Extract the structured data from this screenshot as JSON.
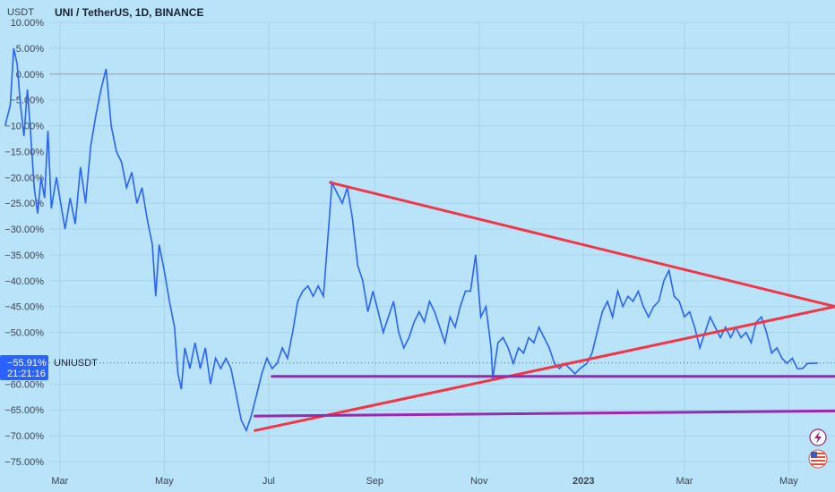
{
  "header": {
    "unit": "USDT",
    "title": "UNI / TetherUS, 1D, BINANCE"
  },
  "price_label": {
    "value": "−55.91%",
    "countdown": "21:21:16",
    "symbol": "UNIUSDT"
  },
  "colors": {
    "background": "#b9e3f9",
    "line": "#2962ff",
    "trend": "#f23645",
    "level": "#9c27b0",
    "label_bg": "#2962ff"
  },
  "icons": [
    "flash-icon",
    "us-flag-icon"
  ],
  "chart_data": {
    "type": "line",
    "title": "UNI / TetherUS, 1D, BINANCE",
    "ylabel": "USDT",
    "ylim": [
      -78,
      12
    ],
    "y_ticks": [
      {
        "v": 10,
        "label": "10.00%"
      },
      {
        "v": 5,
        "label": "5.00%"
      },
      {
        "v": 0,
        "label": "0.00%"
      },
      {
        "v": -5,
        "label": "−5.00%"
      },
      {
        "v": -10,
        "label": "−10.00%"
      },
      {
        "v": -15,
        "label": "−15.00%"
      },
      {
        "v": -20,
        "label": "−20.00%"
      },
      {
        "v": -25,
        "label": "−25.00%"
      },
      {
        "v": -30,
        "label": "−30.00%"
      },
      {
        "v": -35,
        "label": "−35.00%"
      },
      {
        "v": -40,
        "label": "−40.00%"
      },
      {
        "v": -45,
        "label": "−45.00%"
      },
      {
        "v": -50,
        "label": "−50.00%"
      },
      {
        "v": -60,
        "label": "−60.00%"
      },
      {
        "v": -65,
        "label": "−65.00%"
      },
      {
        "v": -70,
        "label": "−70.00%"
      },
      {
        "v": -75,
        "label": "−75.00%"
      }
    ],
    "x_ticks": [
      {
        "date": "2022-03-01",
        "label": "Mar"
      },
      {
        "date": "2022-05-01",
        "label": "May"
      },
      {
        "date": "2022-07-01",
        "label": "Jul"
      },
      {
        "date": "2022-09-01",
        "label": "Sep"
      },
      {
        "date": "2022-11-01",
        "label": "Nov"
      },
      {
        "date": "2023-01-01",
        "label": "2023"
      },
      {
        "date": "2023-03-01",
        "label": "Mar"
      },
      {
        "date": "2023-05-01",
        "label": "May"
      }
    ],
    "xlim": [
      "2022-01-25",
      "2023-05-28"
    ],
    "series": [
      {
        "values": [
          [
            "2022-01-28",
            -10
          ],
          [
            "2022-01-31",
            -6
          ],
          [
            "2022-02-02",
            5
          ],
          [
            "2022-02-04",
            2
          ],
          [
            "2022-02-06",
            -6
          ],
          [
            "2022-02-08",
            -12
          ],
          [
            "2022-02-10",
            -3
          ],
          [
            "2022-02-12",
            -12
          ],
          [
            "2022-02-14",
            -22
          ],
          [
            "2022-02-16",
            -27
          ],
          [
            "2022-02-18",
            -20
          ],
          [
            "2022-02-20",
            -24
          ],
          [
            "2022-02-22",
            -11
          ],
          [
            "2022-02-24",
            -26
          ],
          [
            "2022-02-27",
            -20
          ],
          [
            "2022-03-01",
            -24
          ],
          [
            "2022-03-04",
            -30
          ],
          [
            "2022-03-07",
            -24
          ],
          [
            "2022-03-10",
            -29
          ],
          [
            "2022-03-13",
            -18
          ],
          [
            "2022-03-16",
            -25
          ],
          [
            "2022-03-19",
            -14
          ],
          [
            "2022-03-22",
            -8
          ],
          [
            "2022-03-25",
            -3
          ],
          [
            "2022-03-28",
            1
          ],
          [
            "2022-03-31",
            -10
          ],
          [
            "2022-04-03",
            -15
          ],
          [
            "2022-04-06",
            -17
          ],
          [
            "2022-04-09",
            -22
          ],
          [
            "2022-04-12",
            -19
          ],
          [
            "2022-04-15",
            -25
          ],
          [
            "2022-04-18",
            -22
          ],
          [
            "2022-04-21",
            -28
          ],
          [
            "2022-04-24",
            -33
          ],
          [
            "2022-04-26",
            -43
          ],
          [
            "2022-04-28",
            -33
          ],
          [
            "2022-05-01",
            -38
          ],
          [
            "2022-05-04",
            -44
          ],
          [
            "2022-05-07",
            -49
          ],
          [
            "2022-05-09",
            -58
          ],
          [
            "2022-05-11",
            -61
          ],
          [
            "2022-05-13",
            -53
          ],
          [
            "2022-05-16",
            -57
          ],
          [
            "2022-05-19",
            -52
          ],
          [
            "2022-05-22",
            -57
          ],
          [
            "2022-05-25",
            -53
          ],
          [
            "2022-05-28",
            -60
          ],
          [
            "2022-05-31",
            -55
          ],
          [
            "2022-06-03",
            -57
          ],
          [
            "2022-06-06",
            -55
          ],
          [
            "2022-06-09",
            -57
          ],
          [
            "2022-06-12",
            -62
          ],
          [
            "2022-06-15",
            -67
          ],
          [
            "2022-06-18",
            -69
          ],
          [
            "2022-06-21",
            -66
          ],
          [
            "2022-06-24",
            -62
          ],
          [
            "2022-06-27",
            -58
          ],
          [
            "2022-06-30",
            -55
          ],
          [
            "2022-07-03",
            -57
          ],
          [
            "2022-07-06",
            -56
          ],
          [
            "2022-07-09",
            -53
          ],
          [
            "2022-07-12",
            -55
          ],
          [
            "2022-07-15",
            -50
          ],
          [
            "2022-07-18",
            -44
          ],
          [
            "2022-07-21",
            -42
          ],
          [
            "2022-07-24",
            -41
          ],
          [
            "2022-07-27",
            -43
          ],
          [
            "2022-07-30",
            -41
          ],
          [
            "2022-08-02",
            -43
          ],
          [
            "2022-08-05",
            -30
          ],
          [
            "2022-08-07",
            -21
          ],
          [
            "2022-08-10",
            -23
          ],
          [
            "2022-08-13",
            -25
          ],
          [
            "2022-08-16",
            -22
          ],
          [
            "2022-08-19",
            -28
          ],
          [
            "2022-08-22",
            -37
          ],
          [
            "2022-08-25",
            -40
          ],
          [
            "2022-08-28",
            -46
          ],
          [
            "2022-08-31",
            -42
          ],
          [
            "2022-09-03",
            -46
          ],
          [
            "2022-09-06",
            -50
          ],
          [
            "2022-09-09",
            -47
          ],
          [
            "2022-09-12",
            -44
          ],
          [
            "2022-09-15",
            -50
          ],
          [
            "2022-09-18",
            -53
          ],
          [
            "2022-09-21",
            -51
          ],
          [
            "2022-09-24",
            -48
          ],
          [
            "2022-09-27",
            -46
          ],
          [
            "2022-09-30",
            -48
          ],
          [
            "2022-10-03",
            -44
          ],
          [
            "2022-10-06",
            -46
          ],
          [
            "2022-10-09",
            -49
          ],
          [
            "2022-10-12",
            -52
          ],
          [
            "2022-10-15",
            -47
          ],
          [
            "2022-10-18",
            -49
          ],
          [
            "2022-10-21",
            -45
          ],
          [
            "2022-10-24",
            -42
          ],
          [
            "2022-10-27",
            -42
          ],
          [
            "2022-10-30",
            -35
          ],
          [
            "2022-11-02",
            -47
          ],
          [
            "2022-11-05",
            -45
          ],
          [
            "2022-11-08",
            -53
          ],
          [
            "2022-11-09",
            -59
          ],
          [
            "2022-11-12",
            -52
          ],
          [
            "2022-11-15",
            -51
          ],
          [
            "2022-11-18",
            -53
          ],
          [
            "2022-11-21",
            -56
          ],
          [
            "2022-11-24",
            -53
          ],
          [
            "2022-11-27",
            -54
          ],
          [
            "2022-11-30",
            -51
          ],
          [
            "2022-12-03",
            -52
          ],
          [
            "2022-12-06",
            -49
          ],
          [
            "2022-12-09",
            -51
          ],
          [
            "2022-12-12",
            -53
          ],
          [
            "2022-12-15",
            -56
          ],
          [
            "2022-12-18",
            -57
          ],
          [
            "2022-12-21",
            -56
          ],
          [
            "2022-12-24",
            -57
          ],
          [
            "2022-12-27",
            -58
          ],
          [
            "2022-12-30",
            -57
          ],
          [
            "2023-01-03",
            -56
          ],
          [
            "2023-01-06",
            -54
          ],
          [
            "2023-01-09",
            -50
          ],
          [
            "2023-01-12",
            -46
          ],
          [
            "2023-01-15",
            -44
          ],
          [
            "2023-01-18",
            -47
          ],
          [
            "2023-01-21",
            -42
          ],
          [
            "2023-01-24",
            -45
          ],
          [
            "2023-01-27",
            -43
          ],
          [
            "2023-01-30",
            -44
          ],
          [
            "2023-02-02",
            -42
          ],
          [
            "2023-02-05",
            -45
          ],
          [
            "2023-02-08",
            -47
          ],
          [
            "2023-02-11",
            -45
          ],
          [
            "2023-02-14",
            -44
          ],
          [
            "2023-02-17",
            -40
          ],
          [
            "2023-02-20",
            -38
          ],
          [
            "2023-02-23",
            -43
          ],
          [
            "2023-02-26",
            -44
          ],
          [
            "2023-03-01",
            -47
          ],
          [
            "2023-03-04",
            -46
          ],
          [
            "2023-03-07",
            -49
          ],
          [
            "2023-03-10",
            -53
          ],
          [
            "2023-03-13",
            -50
          ],
          [
            "2023-03-16",
            -47
          ],
          [
            "2023-03-19",
            -49
          ],
          [
            "2023-03-22",
            -51
          ],
          [
            "2023-03-25",
            -49
          ],
          [
            "2023-03-28",
            -51
          ],
          [
            "2023-03-31",
            -49
          ],
          [
            "2023-04-03",
            -51
          ],
          [
            "2023-04-06",
            -50
          ],
          [
            "2023-04-09",
            -52
          ],
          [
            "2023-04-12",
            -48
          ],
          [
            "2023-04-15",
            -47
          ],
          [
            "2023-04-18",
            -50
          ],
          [
            "2023-04-21",
            -54
          ],
          [
            "2023-04-24",
            -53
          ],
          [
            "2023-04-27",
            -55
          ],
          [
            "2023-04-30",
            -56
          ],
          [
            "2023-05-03",
            -55
          ],
          [
            "2023-05-06",
            -57
          ],
          [
            "2023-05-09",
            -57
          ],
          [
            "2023-05-12",
            -56
          ],
          [
            "2023-05-15",
            -56
          ],
          [
            "2023-05-18",
            -55.91
          ]
        ]
      }
    ],
    "annotations": [
      {
        "kind": "trend-line",
        "color": "red",
        "from": [
          "2022-08-06",
          -21
        ],
        "to": [
          "2023-05-28",
          -45
        ]
      },
      {
        "kind": "trend-line",
        "color": "red",
        "from": [
          "2022-06-23",
          -69
        ],
        "to": [
          "2023-05-28",
          -45
        ]
      },
      {
        "kind": "horizontal-level",
        "color": "purple",
        "from": [
          "2022-07-03",
          -58.5
        ],
        "to": [
          "2023-05-28",
          -58.5
        ]
      },
      {
        "kind": "level-line",
        "color": "purple",
        "from": [
          "2022-06-23",
          -66.2
        ],
        "to": [
          "2023-05-28",
          -65.2
        ]
      }
    ],
    "grid": true
  }
}
